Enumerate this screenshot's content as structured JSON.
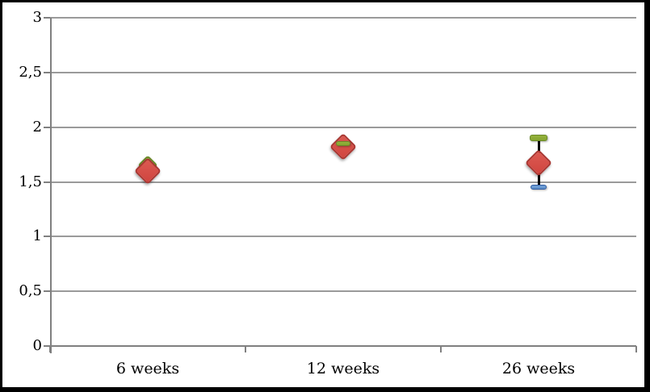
{
  "chart_data": {
    "type": "scatter",
    "title": "",
    "xlabel": "",
    "ylabel": "",
    "legend": "none",
    "grid": "horizontal",
    "categories": [
      "6 weeks",
      "12 weeks",
      "26 weeks"
    ],
    "y_axis": {
      "min": 0,
      "max": 3,
      "tick_values": [
        0,
        0.5,
        1,
        1.5,
        2,
        2.5,
        3
      ],
      "tick_labels": [
        "0",
        "0,5",
        "1",
        "1,5",
        "2",
        "2,5",
        "3"
      ],
      "decimal_separator": ","
    },
    "series": [
      {
        "name": "red-diamonds",
        "marker": "diamond",
        "color_key": "red",
        "values": [
          1.6,
          1.82,
          1.67
        ]
      },
      {
        "name": "green-dashes",
        "marker": "dash",
        "color_key": "green",
        "values": [
          1.65,
          1.85,
          1.9
        ]
      },
      {
        "name": "blue-dashes",
        "marker": "dash",
        "color_key": "blue",
        "values": [
          null,
          null,
          1.45
        ]
      }
    ],
    "error_bars": [
      {
        "category": "26 weeks",
        "x_index": 2,
        "from": 1.45,
        "to": 1.9,
        "color": "#000000"
      }
    ],
    "points": [
      {
        "category": "6 weeks",
        "x_index": 0,
        "markers": [
          {
            "type": "diamond",
            "color_key": "green",
            "value": 1.65,
            "size": 18,
            "z": 1
          },
          {
            "type": "diamond",
            "color_key": "red",
            "value": 1.6,
            "size": 24,
            "z": 3
          }
        ]
      },
      {
        "category": "12 weeks",
        "x_index": 1,
        "markers": [
          {
            "type": "diamond",
            "color_key": "red",
            "value": 1.82,
            "size": 24,
            "z": 2
          },
          {
            "type": "dash",
            "color_key": "green",
            "value": 1.85,
            "w": 18,
            "h": 6,
            "z": 3
          }
        ]
      },
      {
        "category": "26 weeks",
        "x_index": 2,
        "error_bar": {
          "from": 1.45,
          "to": 1.9
        },
        "markers": [
          {
            "type": "dash",
            "color_key": "green",
            "value": 1.9,
            "w": 22,
            "h": 8,
            "z": 2
          },
          {
            "type": "dash",
            "color_key": "blue",
            "value": 1.45,
            "w": 20,
            "h": 6,
            "z": 2
          },
          {
            "type": "diamond",
            "color_key": "red",
            "value": 1.67,
            "size": 24,
            "z": 4
          }
        ]
      }
    ],
    "colors": {
      "red": {
        "fill": "#dc5a52",
        "fill2": "#d0453f",
        "border": "#a93732"
      },
      "green": {
        "fill": "#95b23c",
        "fill2": "#85a430",
        "border": "#6a8a28"
      },
      "blue": {
        "fill": "#6f9fd8",
        "fill2": "#5f8fc8",
        "border": "#2f5a9e"
      },
      "gridline": "#9a9a9a",
      "axis": "#808080",
      "error_bar": "#000000",
      "frame_border": "#000000",
      "background": "#ffffff",
      "text": "#000000"
    }
  }
}
